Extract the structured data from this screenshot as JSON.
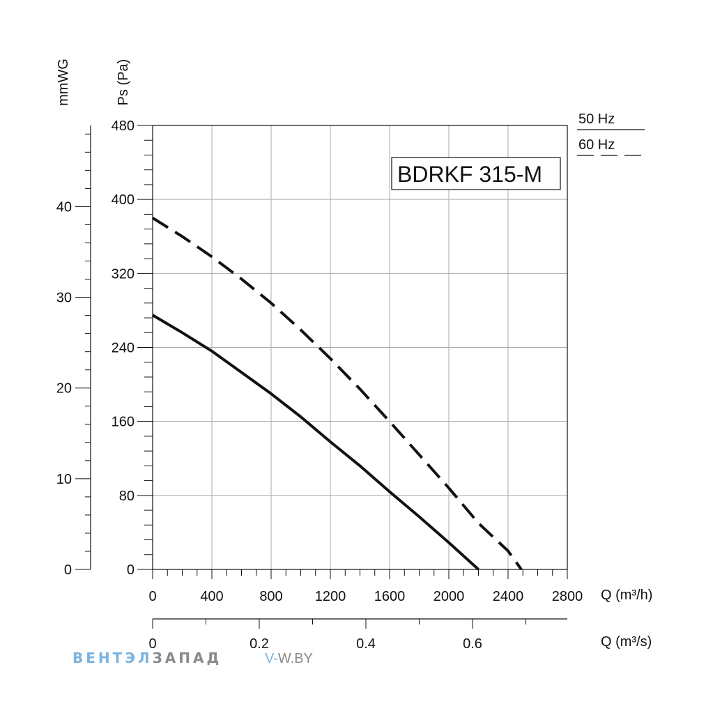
{
  "chart_data": {
    "type": "line",
    "model_label": "BDRKF 315-M",
    "x": {
      "title": "Q (m³/h)",
      "range": [
        0,
        2800
      ],
      "ticks": [
        0,
        400,
        800,
        1200,
        1600,
        2000,
        2400,
        2800
      ]
    },
    "x2": {
      "title": "Q (m³/s)",
      "range": [
        0,
        0.7778
      ],
      "tick_values": [
        0,
        0.2,
        0.4,
        0.6
      ],
      "tick_labels": [
        "0",
        "0.2",
        "0.4",
        "0.6"
      ],
      "minor_values": [
        0.1,
        0.3,
        0.5,
        0.7
      ]
    },
    "y": {
      "title": "Ps (Pa)",
      "range": [
        0,
        480
      ],
      "ticks": [
        0,
        80,
        160,
        240,
        320,
        400,
        480
      ]
    },
    "y2": {
      "title": "mmWG",
      "tick_values": [
        0,
        10,
        20,
        30,
        40
      ],
      "tick_labels": [
        "0",
        "10",
        "20",
        "30",
        "40"
      ]
    },
    "grid": true,
    "legend": {
      "placement": "top-right",
      "items": [
        {
          "label": "50 Hz",
          "style": "solid"
        },
        {
          "label": "60 Hz",
          "style": "dashed"
        }
      ]
    },
    "series": [
      {
        "name": "50 Hz",
        "style": "solid",
        "points": [
          [
            0,
            275
          ],
          [
            200,
            256
          ],
          [
            400,
            236
          ],
          [
            600,
            213
          ],
          [
            800,
            190
          ],
          [
            1000,
            165
          ],
          [
            1200,
            138
          ],
          [
            1400,
            112
          ],
          [
            1600,
            84
          ],
          [
            1800,
            57
          ],
          [
            2000,
            29
          ],
          [
            2200,
            0
          ]
        ]
      },
      {
        "name": "60 Hz",
        "style": "dashed",
        "points": [
          [
            0,
            380
          ],
          [
            200,
            360
          ],
          [
            400,
            338
          ],
          [
            600,
            314
          ],
          [
            800,
            288
          ],
          [
            1000,
            259
          ],
          [
            1200,
            228
          ],
          [
            1400,
            195
          ],
          [
            1600,
            160
          ],
          [
            1800,
            124
          ],
          [
            2000,
            88
          ],
          [
            2200,
            50
          ],
          [
            2400,
            20
          ],
          [
            2490,
            0
          ]
        ]
      }
    ]
  },
  "watermark": {
    "brand_part1": "ВЕНТЭЛ",
    "brand_part2": "ЗАПАД",
    "url_part1": "V-",
    "url_part2": "W.BY"
  },
  "colors": {
    "line": "#111111",
    "grid": "#aaaaaa",
    "brand_blue": "#7ab3e0",
    "brand_gray": "#8a8a8a"
  }
}
